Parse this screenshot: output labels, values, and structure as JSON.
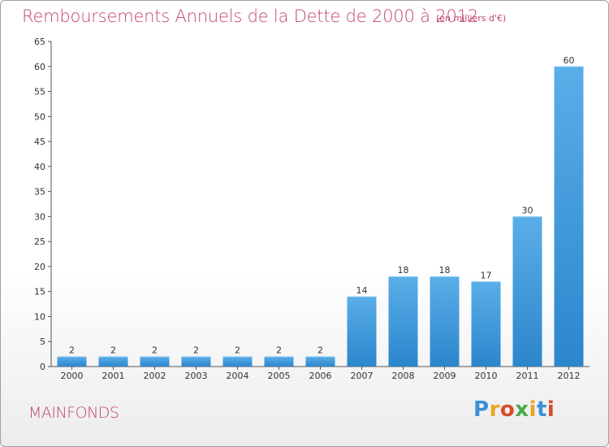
{
  "header": {
    "title": "Remboursements Annuels de la Dette de 2000 à 2012",
    "unit": "(en milliers d'€)"
  },
  "footer": {
    "commune": "MAINFONDS",
    "logo_text": "Proxiti",
    "logo_colors": [
      "#3a8fd6",
      "#e8a422",
      "#d84b2a",
      "#4aa84a",
      "#e8a422",
      "#3a8fd6",
      "#d84b2a"
    ]
  },
  "colors": {
    "bar": "#2c86cc",
    "bar_light": "#5aaee8",
    "title": "#c2466d"
  },
  "chart_data": {
    "type": "bar",
    "title": "Remboursements Annuels de la Dette de 2000 à 2012",
    "subtitle": "(en milliers d'€)",
    "xlabel": "",
    "ylabel": "",
    "categories": [
      "2000",
      "2001",
      "2002",
      "2003",
      "2004",
      "2005",
      "2006",
      "2007",
      "2008",
      "2009",
      "2010",
      "2011",
      "2012"
    ],
    "values": [
      2,
      2,
      2,
      2,
      2,
      2,
      2,
      14,
      18,
      18,
      17,
      30,
      60
    ],
    "data_labels": [
      "2",
      "2",
      "2",
      "2",
      "2",
      "2",
      "2",
      "14",
      "18",
      "18",
      "17",
      "30",
      "60"
    ],
    "ylim": [
      0,
      65
    ],
    "yticks": [
      0,
      5,
      10,
      15,
      20,
      25,
      30,
      35,
      40,
      45,
      50,
      55,
      60,
      65
    ],
    "grid": false,
    "legend": "none"
  }
}
